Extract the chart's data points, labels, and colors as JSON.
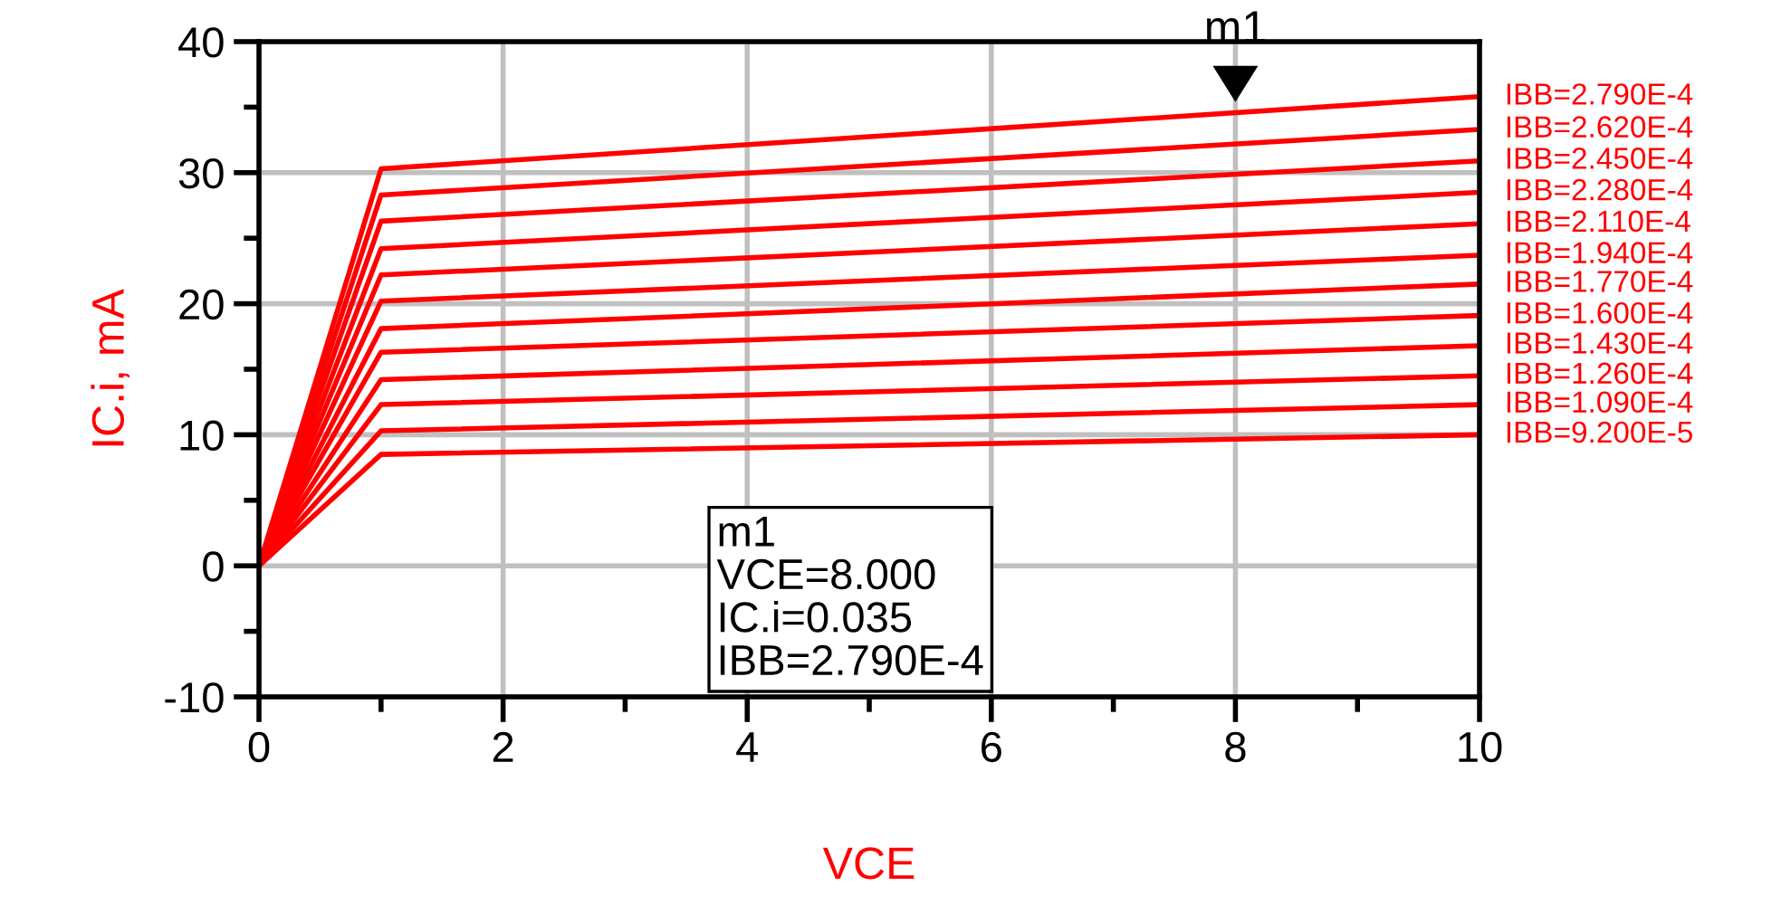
{
  "chart_data": {
    "type": "line",
    "xlabel": "VCE",
    "ylabel": "IC.i, mA",
    "xlim": [
      0,
      10
    ],
    "xticks": [
      0,
      2,
      4,
      6,
      8,
      10
    ],
    "ylim": [
      -10,
      40
    ],
    "yticks": [
      -10,
      0,
      10,
      20,
      30,
      40
    ],
    "grid": true,
    "legend": false,
    "marker": "none",
    "line_style": "solid",
    "series": [
      {
        "name": "IBB=2.790E-4",
        "color": "#ff0000",
        "x": [
          0,
          1,
          10
        ],
        "values": [
          0,
          30.3,
          35.8
        ]
      },
      {
        "name": "IBB=2.620E-4",
        "color": "#ff0000",
        "x": [
          0,
          1,
          10
        ],
        "values": [
          0,
          28.3,
          33.3
        ]
      },
      {
        "name": "IBB=2.450E-4",
        "color": "#ff0000",
        "x": [
          0,
          1,
          10
        ],
        "values": [
          0,
          26.3,
          30.9
        ]
      },
      {
        "name": "IBB=2.280E-4",
        "color": "#ff0000",
        "x": [
          0,
          1,
          10
        ],
        "values": [
          0,
          24.2,
          28.5
        ]
      },
      {
        "name": "IBB=2.110E-4",
        "color": "#ff0000",
        "x": [
          0,
          1,
          10
        ],
        "values": [
          0,
          22.2,
          26.1
        ]
      },
      {
        "name": "IBB=1.940E-4",
        "color": "#ff0000",
        "x": [
          0,
          1,
          10
        ],
        "values": [
          0,
          20.2,
          23.7
        ]
      },
      {
        "name": "IBB=1.770E-4",
        "color": "#ff0000",
        "x": [
          0,
          1,
          10
        ],
        "values": [
          0,
          18.1,
          21.5
        ]
      },
      {
        "name": "IBB=1.600E-4",
        "color": "#ff0000",
        "x": [
          0,
          1,
          10
        ],
        "values": [
          0,
          16.3,
          19.1
        ]
      },
      {
        "name": "IBB=1.430E-4",
        "color": "#ff0000",
        "x": [
          0,
          1,
          10
        ],
        "values": [
          0,
          14.2,
          16.8
        ]
      },
      {
        "name": "IBB=1.260E-4",
        "color": "#ff0000",
        "x": [
          0,
          1,
          10
        ],
        "values": [
          0,
          12.3,
          14.5
        ]
      },
      {
        "name": "IBB=1.090E-4",
        "color": "#ff0000",
        "x": [
          0,
          1,
          10
        ],
        "values": [
          0,
          10.3,
          12.3
        ]
      },
      {
        "name": "IBB=9.200E-5",
        "color": "#ff0000",
        "x": [
          0,
          1,
          10
        ],
        "values": [
          0,
          8.5,
          10.0
        ]
      }
    ],
    "annotations": [
      {
        "text": "m1",
        "x": 8,
        "y": 35
      },
      "m1\nVCE=8.000\nIC.i=0.035\nIBB=2.790E-4"
    ]
  }
}
